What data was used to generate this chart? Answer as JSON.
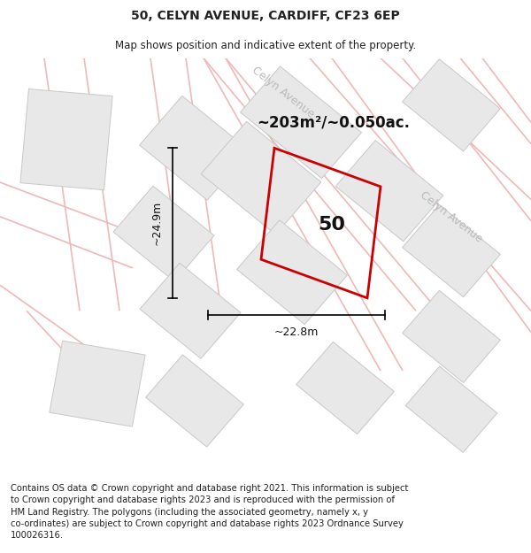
{
  "title": "50, CELYN AVENUE, CARDIFF, CF23 6EP",
  "subtitle": "Map shows position and indicative extent of the property.",
  "footer": "Contains OS data © Crown copyright and database right 2021. This information is subject\nto Crown copyright and database rights 2023 and is reproduced with the permission of\nHM Land Registry. The polygons (including the associated geometry, namely x, y\nco-ordinates) are subject to Crown copyright and database rights 2023 Ordnance Survey\n100026316.",
  "background_color": "#ffffff",
  "map_bg": "#ffffff",
  "road_color": "#f0b8b8",
  "block_fill": "#e8e8e8",
  "block_edge": "#c8c8c8",
  "highlight_color": "#cc0000",
  "street_label_color": "#bbbbbb",
  "area_label": "~203m²/~0.050ac.",
  "number_label": "50",
  "dim_width": "~22.8m",
  "dim_height": "~24.9m",
  "title_fontsize": 10,
  "subtitle_fontsize": 8.5,
  "footer_fontsize": 7.2
}
